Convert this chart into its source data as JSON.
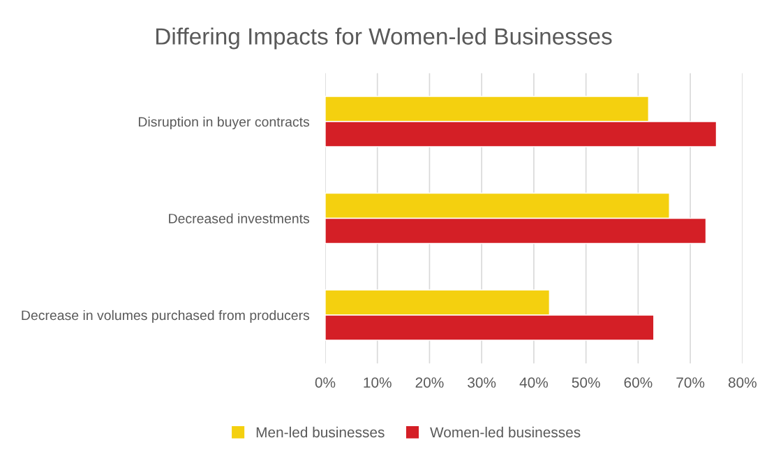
{
  "chart_data": {
    "type": "bar",
    "orientation": "horizontal",
    "title": "Differing Impacts for Women-led Businesses",
    "categories": [
      "Disruption in buyer contracts",
      "Decreased investments",
      "Decrease in volumes purchased from producers"
    ],
    "series": [
      {
        "name": "Men-led businesses",
        "color": "#f4d00f",
        "values": [
          62,
          66,
          43
        ]
      },
      {
        "name": "Women-led businesses",
        "color": "#d41f26",
        "values": [
          75,
          73,
          63
        ]
      }
    ],
    "xlim": [
      0,
      80
    ],
    "xticks": [
      {
        "value": 0,
        "label": "0%"
      },
      {
        "value": 10,
        "label": "10%"
      },
      {
        "value": 20,
        "label": "20%"
      },
      {
        "value": 30,
        "label": "30%"
      },
      {
        "value": 40,
        "label": "40%"
      },
      {
        "value": 50,
        "label": "50%"
      },
      {
        "value": 60,
        "label": "60%"
      },
      {
        "value": 70,
        "label": "70%"
      },
      {
        "value": 80,
        "label": "80%"
      }
    ],
    "grid": "x",
    "legend": "bottom"
  }
}
